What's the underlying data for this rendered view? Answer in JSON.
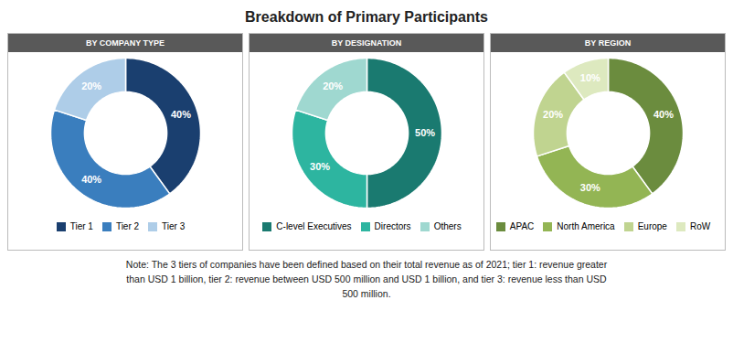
{
  "title": "Breakdown of Primary Participants",
  "chart_data": [
    {
      "type": "donut",
      "title": "BY COMPANY TYPE",
      "categories": [
        "Tier 1",
        "Tier 2",
        "Tier 3"
      ],
      "values": [
        40,
        40,
        20
      ],
      "value_labels": [
        "40%",
        "40%",
        "20%"
      ],
      "colors": [
        "#1A3F6F",
        "#3A7EBE",
        "#AECDE8"
      ],
      "data_labels": true,
      "legend": "bottom"
    },
    {
      "type": "donut",
      "title": "BY DESIGNATION",
      "categories": [
        "C-level Executives",
        "Directors",
        "Others"
      ],
      "values": [
        50,
        30,
        20
      ],
      "value_labels": [
        "50%",
        "30%",
        "20%"
      ],
      "colors": [
        "#1A7A70",
        "#2DB5A0",
        "#9FD8D0"
      ],
      "data_labels": true,
      "legend": "bottom"
    },
    {
      "type": "donut",
      "title": "BY REGION",
      "categories": [
        "APAC",
        "North America",
        "Europe",
        "RoW"
      ],
      "values": [
        40,
        30,
        20,
        10
      ],
      "value_labels": [
        "40%",
        "30%",
        "20%",
        "10%"
      ],
      "colors": [
        "#6B8C3E",
        "#93B554",
        "#C0D490",
        "#DDE9BF"
      ],
      "data_labels": true,
      "legend": "bottom"
    }
  ],
  "annotations": [
    "Note: The 3 tiers of companies have been defined based on their total revenue as of 2021; tier 1: revenue greater\nthan USD 1 billion, tier 2: revenue between USD 500 million and USD 1 billion, and tier 3: revenue less than USD\n500 million."
  ]
}
